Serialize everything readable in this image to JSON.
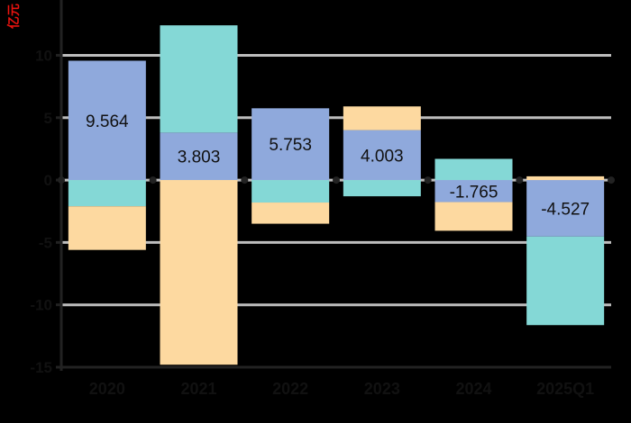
{
  "chart_data": {
    "type": "bar",
    "stacked": true,
    "unit_label": "亿元",
    "categories": [
      "2020",
      "2021",
      "2022",
      "2023",
      "2024",
      "2025Q1"
    ],
    "series": [
      {
        "values": [
          9.564,
          3.803,
          5.753,
          4.003,
          -1.765,
          -4.527
        ]
      },
      {
        "values": [
          -2.1,
          8.6,
          -1.8,
          -1.3,
          1.7,
          -7.1
        ]
      },
      {
        "values": [
          -3.5,
          -14.8,
          -1.7,
          1.9,
          -2.3,
          0.3
        ]
      }
    ],
    "data_labels": [
      "9.564",
      "3.803",
      "5.753",
      "4.003",
      "-1.765",
      "-4.527"
    ],
    "ylim": [
      -15,
      14
    ],
    "yticks": [
      -15,
      -10,
      -5,
      0,
      5,
      10
    ],
    "grid": true,
    "colors": {
      "series": [
        "#8fa9dc",
        "#84d8d6",
        "#fdd9a0"
      ],
      "unit_label": "#e8130f",
      "grid": "#bdbdbd",
      "axis": "#222222",
      "background": "#000000"
    }
  }
}
